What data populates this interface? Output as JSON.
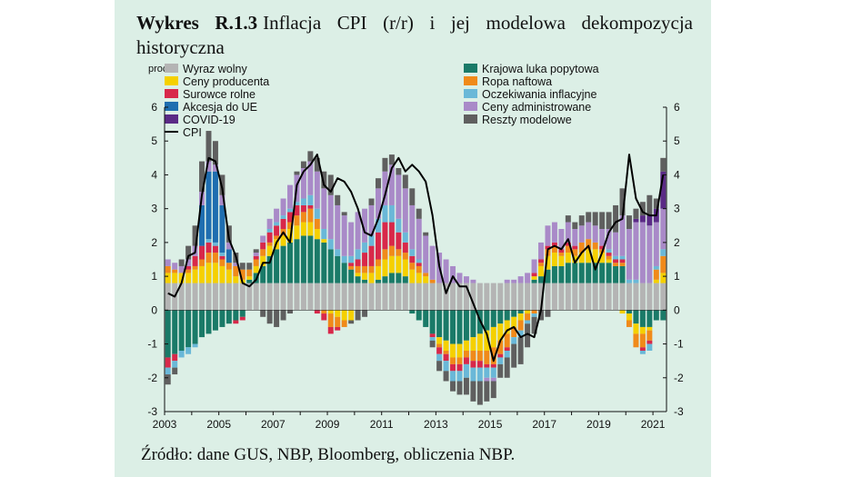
{
  "figure": {
    "label": "Wykres R.1.3",
    "title": "Inflacja CPI (r/r) i jej modelowa dekompozycja historyczna",
    "unit": "proc.",
    "source": "Źródło: dane GUS, NBP, Bloomberg, obliczenia NBP."
  },
  "chart_data": {
    "type": "bar",
    "stacked": true,
    "ylim": [
      -3,
      6
    ],
    "yticks": [
      -3,
      -2,
      -1,
      0,
      1,
      2,
      3,
      4,
      5,
      6
    ],
    "xtick_labels": [
      "2003",
      "2005",
      "2007",
      "2009",
      "2011",
      "2013",
      "2015",
      "2017",
      "2019",
      "2021"
    ],
    "grid": false,
    "legend_position": "top",
    "categories": [
      "2003Q1",
      "2003Q2",
      "2003Q3",
      "2003Q4",
      "2004Q1",
      "2004Q2",
      "2004Q3",
      "2004Q4",
      "2005Q1",
      "2005Q2",
      "2005Q3",
      "2005Q4",
      "2006Q1",
      "2006Q2",
      "2006Q3",
      "2006Q4",
      "2007Q1",
      "2007Q2",
      "2007Q3",
      "2007Q4",
      "2008Q1",
      "2008Q2",
      "2008Q3",
      "2008Q4",
      "2009Q1",
      "2009Q2",
      "2009Q3",
      "2009Q4",
      "2010Q1",
      "2010Q2",
      "2010Q3",
      "2010Q4",
      "2011Q1",
      "2011Q2",
      "2011Q3",
      "2011Q4",
      "2012Q1",
      "2012Q2",
      "2012Q3",
      "2012Q4",
      "2013Q1",
      "2013Q2",
      "2013Q3",
      "2013Q4",
      "2014Q1",
      "2014Q2",
      "2014Q3",
      "2014Q4",
      "2015Q1",
      "2015Q2",
      "2015Q3",
      "2015Q4",
      "2016Q1",
      "2016Q2",
      "2016Q3",
      "2016Q4",
      "2017Q1",
      "2017Q2",
      "2017Q3",
      "2017Q4",
      "2018Q1",
      "2018Q2",
      "2018Q3",
      "2018Q4",
      "2019Q1",
      "2019Q2",
      "2019Q3",
      "2019Q4",
      "2020Q1",
      "2020Q2",
      "2020Q3",
      "2020Q4",
      "2021Q1",
      "2021Q2"
    ],
    "series": [
      {
        "name": "Wyraz wolny",
        "color": "#b4b4b4",
        "values": [
          0.8,
          0.8,
          0.8,
          0.8,
          0.8,
          0.8,
          0.8,
          0.8,
          0.8,
          0.8,
          0.8,
          0.8,
          0.8,
          0.8,
          0.8,
          0.8,
          0.8,
          0.8,
          0.8,
          0.8,
          0.8,
          0.8,
          0.8,
          0.8,
          0.8,
          0.8,
          0.8,
          0.8,
          0.8,
          0.8,
          0.8,
          0.8,
          0.8,
          0.8,
          0.8,
          0.8,
          0.8,
          0.8,
          0.8,
          0.8,
          0.8,
          0.8,
          0.8,
          0.8,
          0.8,
          0.8,
          0.8,
          0.8,
          0.8,
          0.8,
          0.8,
          0.8,
          0.8,
          0.8,
          0.8,
          0.8,
          0.8,
          0.8,
          0.8,
          0.8,
          0.8,
          0.8,
          0.8,
          0.8,
          0.8,
          0.8,
          0.8,
          0.8,
          0.8,
          0.8,
          0.8,
          0.8,
          0.8,
          0.8
        ]
      },
      {
        "name": "Krajowa luka popytowa",
        "color": "#1a7a68",
        "values": [
          -1.4,
          -1.3,
          -1.2,
          -1.1,
          -1.0,
          -0.8,
          -0.7,
          -0.6,
          -0.5,
          -0.4,
          -0.3,
          -0.2,
          0.1,
          0.3,
          0.5,
          0.8,
          1.0,
          1.1,
          1.2,
          1.3,
          1.4,
          1.4,
          1.3,
          1.2,
          1.0,
          0.8,
          0.6,
          0.4,
          0.2,
          0.1,
          0.0,
          0.1,
          0.2,
          0.3,
          0.3,
          0.2,
          -0.1,
          -0.3,
          -0.5,
          -0.7,
          -0.8,
          -0.9,
          -1.0,
          -1.0,
          -0.9,
          -0.8,
          -0.7,
          -0.6,
          -0.5,
          -0.4,
          -0.3,
          -0.2,
          -0.1,
          0.0,
          0.1,
          0.2,
          0.4,
          0.5,
          0.5,
          0.6,
          0.6,
          0.6,
          0.6,
          0.6,
          0.6,
          0.6,
          0.5,
          0.5,
          -0.1,
          -0.4,
          -0.5,
          -0.5,
          -0.3,
          -0.3
        ]
      },
      {
        "name": "Ceny producenta",
        "color": "#f5d000",
        "values": [
          0.3,
          0.3,
          0.3,
          0.3,
          0.4,
          0.5,
          0.6,
          0.6,
          0.5,
          0.4,
          0.2,
          0.1,
          0.1,
          0.2,
          0.3,
          0.3,
          0.3,
          0.3,
          0.4,
          0.4,
          0.4,
          0.4,
          0.3,
          0.1,
          -0.1,
          -0.2,
          -0.3,
          -0.3,
          0.1,
          0.2,
          0.3,
          0.4,
          0.5,
          0.5,
          0.5,
          0.5,
          0.4,
          0.3,
          0.2,
          0.0,
          -0.2,
          -0.3,
          -0.4,
          -0.4,
          -0.3,
          -0.4,
          -0.5,
          -0.6,
          -0.6,
          -0.5,
          -0.4,
          -0.3,
          -0.2,
          -0.1,
          0.1,
          0.3,
          0.4,
          0.4,
          0.3,
          0.3,
          0.2,
          0.3,
          0.4,
          0.4,
          0.3,
          0.1,
          0.0,
          -0.1,
          -0.2,
          -0.3,
          -0.2,
          -0.1,
          0.1,
          0.3
        ]
      },
      {
        "name": "Ropa naftowa",
        "color": "#f08a1a",
        "values": [
          0.2,
          0.1,
          0.0,
          0.1,
          0.1,
          0.2,
          0.3,
          0.3,
          0.2,
          0.2,
          0.3,
          0.3,
          0.2,
          0.2,
          0.2,
          0.1,
          0.1,
          0.2,
          0.2,
          0.3,
          0.3,
          0.4,
          0.3,
          -0.1,
          -0.4,
          -0.3,
          -0.2,
          0.1,
          0.2,
          0.2,
          0.2,
          0.2,
          0.3,
          0.3,
          0.2,
          0.2,
          0.2,
          0.2,
          0.1,
          0.1,
          -0.1,
          -0.1,
          -0.2,
          -0.2,
          -0.2,
          -0.3,
          -0.3,
          -0.4,
          -0.5,
          -0.4,
          -0.4,
          -0.3,
          -0.3,
          -0.2,
          -0.1,
          0.1,
          0.2,
          0.2,
          0.1,
          0.2,
          0.2,
          0.3,
          0.3,
          0.2,
          0.1,
          0.1,
          0.1,
          0.1,
          -0.2,
          -0.4,
          -0.4,
          -0.3,
          0.3,
          0.5
        ]
      },
      {
        "name": "Surowce rolne",
        "color": "#d8284a",
        "values": [
          -0.3,
          -0.2,
          0.0,
          0.1,
          0.3,
          0.4,
          0.3,
          0.2,
          0.1,
          0.0,
          -0.1,
          -0.1,
          0.0,
          0.1,
          0.2,
          0.3,
          0.3,
          0.3,
          0.3,
          0.3,
          0.2,
          0.1,
          -0.1,
          -0.2,
          -0.2,
          -0.1,
          0.0,
          0.1,
          0.2,
          0.4,
          0.6,
          0.8,
          0.8,
          0.7,
          0.5,
          0.3,
          0.2,
          0.1,
          0.0,
          -0.1,
          -0.2,
          -0.2,
          -0.2,
          -0.2,
          -0.2,
          -0.2,
          -0.2,
          -0.1,
          -0.1,
          -0.1,
          -0.1,
          0.0,
          0.0,
          0.0,
          0.1,
          0.1,
          0.1,
          0.1,
          0.1,
          0.1,
          0.1,
          0.0,
          0.0,
          0.0,
          0.1,
          0.1,
          0.1,
          0.1,
          0.0,
          0.0,
          -0.1,
          -0.1,
          0.0,
          0.0
        ]
      },
      {
        "name": "Oczekiwania inflacyjne",
        "color": "#6ab8d8",
        "values": [
          -0.2,
          -0.2,
          -0.2,
          -0.2,
          -0.1,
          0.0,
          0.1,
          0.1,
          0.1,
          0.0,
          0.0,
          0.0,
          0.0,
          0.0,
          0.0,
          0.1,
          0.1,
          0.1,
          0.1,
          0.1,
          0.2,
          0.3,
          0.3,
          0.3,
          0.3,
          0.2,
          0.2,
          0.2,
          0.3,
          0.3,
          0.3,
          0.4,
          0.5,
          0.5,
          0.4,
          0.3,
          0.2,
          0.1,
          0.0,
          -0.1,
          -0.2,
          -0.3,
          -0.3,
          -0.3,
          -0.4,
          -0.4,
          -0.4,
          -0.3,
          -0.3,
          -0.2,
          -0.2,
          -0.2,
          -0.2,
          -0.1,
          -0.1,
          0.0,
          0.0,
          0.0,
          0.0,
          0.0,
          0.0,
          0.0,
          0.0,
          0.0,
          0.0,
          0.1,
          0.1,
          0.1,
          0.1,
          0.1,
          -0.1,
          -0.2,
          0.1,
          0.2
        ]
      },
      {
        "name": "Akcesja do UE",
        "color": "#1f6eb0",
        "values": [
          0,
          0,
          0,
          0,
          0,
          1.2,
          2.0,
          2.1,
          1.4,
          0.4,
          0,
          0,
          0,
          0,
          0,
          0,
          0,
          0,
          0,
          0,
          0,
          0,
          0,
          0,
          0,
          0,
          0,
          0,
          0,
          0,
          0,
          0,
          0,
          0,
          0,
          0,
          0,
          0,
          0,
          0,
          0,
          0,
          0,
          0,
          0,
          0,
          0,
          0,
          0,
          0,
          0,
          0,
          0,
          0,
          0,
          0,
          0,
          0,
          0,
          0,
          0,
          0,
          0,
          0,
          0,
          0,
          0,
          0,
          0,
          0,
          0,
          0,
          0,
          0
        ]
      },
      {
        "name": "Ceny administrowane",
        "color": "#a98ac8",
        "values": [
          0.2,
          0.2,
          0.2,
          0.2,
          0.3,
          0.4,
          0.3,
          0.2,
          0.3,
          0.2,
          0.1,
          0.0,
          0.0,
          0.1,
          0.2,
          0.3,
          0.4,
          0.5,
          0.7,
          0.8,
          0.9,
          1.0,
          1.1,
          1.2,
          1.3,
          1.3,
          1.2,
          1.0,
          1.1,
          1.0,
          0.9,
          0.9,
          1.0,
          1.2,
          1.3,
          1.3,
          1.3,
          1.2,
          1.1,
          1.0,
          0.9,
          0.7,
          0.5,
          0.3,
          0.2,
          0.1,
          0.0,
          -0.1,
          -0.1,
          0.0,
          0.1,
          0.1,
          0.2,
          0.3,
          0.4,
          0.5,
          0.6,
          0.6,
          0.6,
          0.6,
          0.5,
          0.5,
          0.5,
          0.5,
          0.5,
          0.6,
          0.7,
          1.2,
          1.5,
          1.7,
          1.8,
          1.7,
          1.3,
          1.2
        ]
      },
      {
        "name": "COVID-19",
        "color": "#5a2a86",
        "values": [
          0,
          0,
          0,
          0,
          0,
          0,
          0,
          0,
          0,
          0,
          0,
          0,
          0,
          0,
          0,
          0,
          0,
          0,
          0,
          0,
          0,
          0,
          0,
          0,
          0,
          0,
          0,
          0,
          0,
          0,
          0,
          0,
          0,
          0,
          0,
          0,
          0,
          0,
          0,
          0,
          0,
          0,
          0,
          0,
          0,
          0,
          0,
          0,
          0,
          0,
          0,
          0,
          0,
          0,
          0,
          0,
          0,
          0,
          0,
          0,
          0,
          0,
          0,
          0,
          0,
          0,
          0,
          0,
          0,
          0.1,
          0.2,
          0.3,
          0.4,
          1.1
        ]
      },
      {
        "name": "Reszty modelowe",
        "color": "#5f5f5f",
        "values": [
          -0.3,
          -0.2,
          0.2,
          0.4,
          0.6,
          0.9,
          0.9,
          0.7,
          0.6,
          0.5,
          0.3,
          0.2,
          0.2,
          0.1,
          -0.2,
          -0.4,
          -0.5,
          -0.3,
          -0.1,
          0.1,
          0.2,
          0.3,
          0.4,
          0.5,
          0.6,
          0.3,
          0.1,
          -0.1,
          -0.3,
          -0.2,
          0.2,
          0.3,
          0.4,
          0.3,
          0.2,
          0.4,
          0.5,
          0.3,
          0.1,
          -0.2,
          -0.3,
          -0.3,
          -0.3,
          -0.4,
          -0.5,
          -0.6,
          -0.7,
          -0.6,
          -0.5,
          -0.4,
          -0.6,
          -0.7,
          -0.8,
          -0.7,
          -0.5,
          -0.3,
          -0.2,
          0.0,
          0.0,
          0.2,
          0.2,
          0.3,
          0.3,
          0.4,
          0.5,
          0.5,
          0.8,
          0.8,
          0.4,
          0.3,
          0.4,
          0.6,
          0.3,
          0.4
        ]
      },
      {
        "name": "CPI",
        "type": "line",
        "color": "#000000",
        "values": [
          0.5,
          0.4,
          0.8,
          1.6,
          1.7,
          3.4,
          4.5,
          4.4,
          3.6,
          2.1,
          1.6,
          0.8,
          0.7,
          0.9,
          1.4,
          1.4,
          2.0,
          2.3,
          2.0,
          3.7,
          4.1,
          4.3,
          4.6,
          3.7,
          3.5,
          3.9,
          3.8,
          3.5,
          3.0,
          2.3,
          2.2,
          2.7,
          3.4,
          4.2,
          4.5,
          4.1,
          4.3,
          4.1,
          3.8,
          2.8,
          1.3,
          0.5,
          1.0,
          0.7,
          0.7,
          0.2,
          -0.3,
          -0.7,
          -1.5,
          -0.9,
          -0.6,
          -0.5,
          -0.8,
          -0.7,
          -0.8,
          0.0,
          1.8,
          1.9,
          1.8,
          2.1,
          1.4,
          1.7,
          1.9,
          1.2,
          1.7,
          2.3,
          2.6,
          2.7,
          4.6,
          3.3,
          2.9,
          2.8,
          2.8,
          4.0
        ]
      }
    ]
  }
}
